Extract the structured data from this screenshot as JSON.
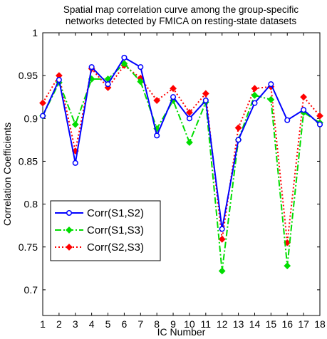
{
  "chart_data": {
    "type": "line",
    "title": "Spatial map correlation curve among the group-specific\nnetworks detected by FMICA on resting-state datasets",
    "xlabel": "IC Number",
    "ylabel": "Correlation Coefficients",
    "xlim": [
      1,
      18
    ],
    "ylim": [
      0.67,
      1.0
    ],
    "xticks": [
      1,
      2,
      3,
      4,
      5,
      6,
      7,
      8,
      9,
      10,
      11,
      12,
      13,
      14,
      15,
      16,
      17,
      18
    ],
    "yticks": [
      0.7,
      0.75,
      0.8,
      0.85,
      0.9,
      0.95,
      1
    ],
    "ytick_labels": [
      "0.7",
      "0.75",
      "0.8",
      "0.85",
      "0.9",
      "0.95",
      "1"
    ],
    "grid": false,
    "legend_position": "lower-left",
    "x": [
      1,
      2,
      3,
      4,
      5,
      6,
      7,
      8,
      9,
      10,
      11,
      12,
      13,
      14,
      15,
      16,
      17,
      18
    ],
    "series": [
      {
        "name": "Corr(S1,S2)",
        "color": "#0000ff",
        "line_style": "solid",
        "marker": "circle",
        "values": [
          0.903,
          0.945,
          0.848,
          0.96,
          0.94,
          0.971,
          0.96,
          0.88,
          0.925,
          0.9,
          0.921,
          0.771,
          0.875,
          0.918,
          0.94,
          0.898,
          0.91,
          0.893
        ]
      },
      {
        "name": "Corr(S1,S3)",
        "color": "#00dd00",
        "line_style": "dashdot",
        "marker": "diamond",
        "values": [
          0.903,
          0.942,
          0.893,
          0.946,
          0.946,
          0.964,
          0.943,
          0.888,
          0.921,
          0.872,
          0.919,
          0.722,
          0.875,
          0.927,
          0.922,
          0.728,
          0.907,
          0.895
        ]
      },
      {
        "name": "Corr(S2,S3)",
        "color": "#ff0000",
        "line_style": "dotted",
        "marker": "diamond",
        "values": [
          0.918,
          0.95,
          0.862,
          0.958,
          0.936,
          0.962,
          0.947,
          0.921,
          0.935,
          0.907,
          0.929,
          0.759,
          0.889,
          0.935,
          0.937,
          0.755,
          0.925,
          0.903
        ]
      }
    ]
  }
}
